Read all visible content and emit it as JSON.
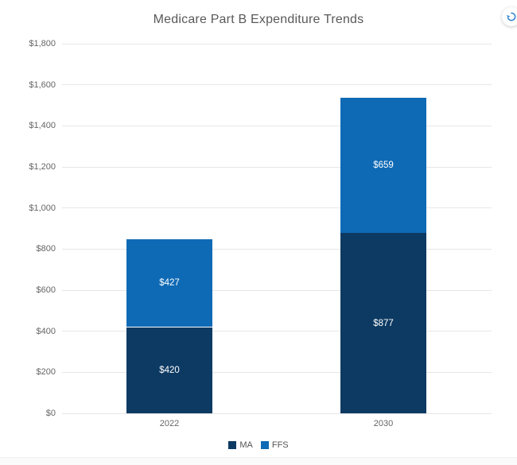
{
  "chart_data": {
    "type": "bar",
    "stacked": true,
    "title": "Medicare Part B Expenditure Trends",
    "categories": [
      "2022",
      "2030"
    ],
    "series": [
      {
        "name": "MA",
        "color": "#0d3a63",
        "values": [
          420,
          877
        ],
        "labels": [
          "$420",
          "$877"
        ]
      },
      {
        "name": "FFS",
        "color": "#0f6ab5",
        "values": [
          427,
          659
        ],
        "labels": [
          "$427",
          "$659"
        ]
      }
    ],
    "totals": [
      847,
      1536
    ],
    "ylim": [
      0,
      1800
    ],
    "ytick_step": 200,
    "ytick_labels": [
      "$0",
      "$200",
      "$400",
      "$600",
      "$800",
      "$1,000",
      "$1,200",
      "$1,400",
      "$1,600",
      "$1,800"
    ],
    "xlabel": "",
    "ylabel": "",
    "grid": true,
    "legend_position": "bottom"
  },
  "colors": {
    "gridline": "#e6e6e6",
    "axis_text": "#666666",
    "title_text": "#595959",
    "bar_label_text": "#ffffff",
    "icon_accent": "#2b7fd0"
  },
  "icons": {
    "refresh": "refresh-icon"
  }
}
